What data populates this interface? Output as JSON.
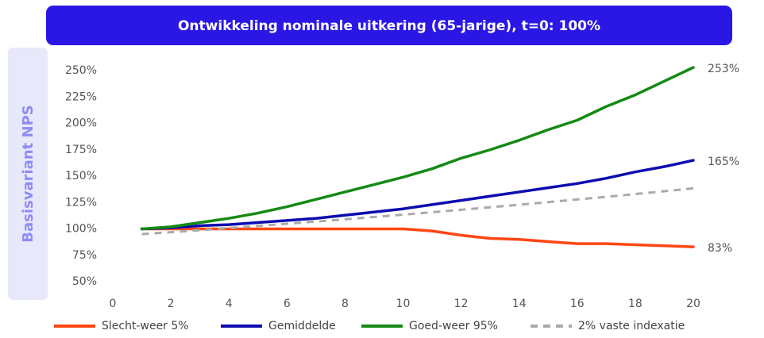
{
  "chart_data": {
    "type": "line",
    "title": "Ontwikkeling nominale uitkering (65-jarige), t=0: 100%",
    "side_label": "Basisvariant NPS",
    "x": [
      1,
      2,
      3,
      4,
      5,
      6,
      7,
      8,
      9,
      10,
      11,
      12,
      13,
      14,
      15,
      16,
      17,
      18,
      19,
      20
    ],
    "series": [
      {
        "name": "Slecht-weer 5%",
        "color": "#ff4713",
        "dashed": false,
        "values": [
          100,
          100,
          100,
          100,
          100,
          100,
          100,
          100,
          100,
          100,
          98,
          94,
          91,
          90,
          88,
          86,
          86,
          85,
          84,
          83
        ],
        "value_labels": [
          null,
          null,
          null,
          null,
          null,
          null,
          null,
          null,
          null,
          null,
          null,
          null,
          null,
          null,
          null,
          null,
          null,
          null,
          null,
          "83%"
        ]
      },
      {
        "name": "Gemiddelde",
        "color": "#0c0cb0",
        "dashed": false,
        "values": [
          100,
          101,
          103,
          104,
          106,
          108,
          110,
          113,
          116,
          119,
          123,
          127,
          131,
          135,
          139,
          143,
          148,
          154,
          159,
          165
        ],
        "value_labels": [
          null,
          null,
          null,
          null,
          null,
          null,
          null,
          null,
          null,
          null,
          null,
          null,
          null,
          null,
          null,
          null,
          null,
          null,
          null,
          "165%"
        ]
      },
      {
        "name": "Goed-weer 95%",
        "color": "#138a13",
        "dashed": false,
        "values": [
          100,
          102,
          106,
          110,
          115,
          121,
          128,
          135,
          142,
          149,
          157,
          167,
          175,
          184,
          194,
          203,
          216,
          227,
          240,
          253
        ],
        "value_labels": [
          null,
          null,
          null,
          null,
          null,
          null,
          null,
          null,
          null,
          null,
          null,
          null,
          null,
          null,
          null,
          null,
          null,
          null,
          null,
          "253%"
        ]
      },
      {
        "name": "2% vaste indexatie",
        "color": "#aaaaaa",
        "dashed": true,
        "values": [
          95,
          96.9,
          98.8,
          100.8,
          102.8,
          104.9,
          107,
          109.1,
          111.3,
          113.5,
          115.8,
          118.1,
          120.5,
          122.9,
          125.4,
          127.9,
          130.4,
          133,
          135.7,
          138.4
        ]
      }
    ],
    "xlim": [
      0,
      20
    ],
    "xticks": [
      0,
      2,
      4,
      6,
      8,
      10,
      12,
      14,
      16,
      18,
      20
    ],
    "ylim": [
      40,
      260
    ],
    "yticks": [
      {
        "value": 50,
        "label": "50%"
      },
      {
        "value": 75,
        "label": "75%"
      },
      {
        "value": 100,
        "label": "100%"
      },
      {
        "value": 125,
        "label": "125%"
      },
      {
        "value": 150,
        "label": "150%"
      },
      {
        "value": 175,
        "label": "175%"
      },
      {
        "value": 200,
        "label": "200%"
      },
      {
        "value": 225,
        "label": "225%"
      },
      {
        "value": 250,
        "label": "250%"
      }
    ],
    "legend": "bottom"
  }
}
